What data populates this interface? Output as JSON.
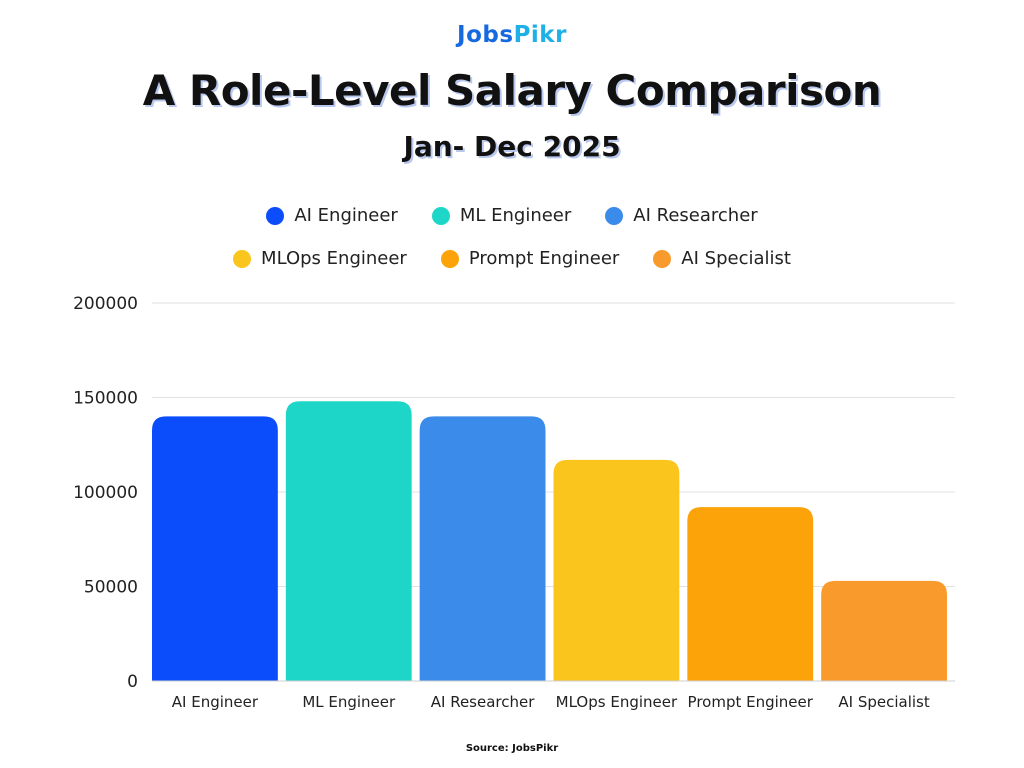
{
  "brand": {
    "logo_part1": "Jobs",
    "logo_part2": "Pikr",
    "logo_color1": "#1769e0",
    "logo_color2": "#1fb0e8"
  },
  "source": "Source: JobsPikr",
  "chart_data": {
    "type": "bar",
    "title": "A Role-Level Salary Comparison",
    "subtitle": "Jan- Dec 2025",
    "categories": [
      "AI Engineer",
      "ML Engineer",
      "AI Researcher",
      "MLOps Engineer",
      "Prompt Engineer",
      "AI Specialist"
    ],
    "values": [
      140000,
      148000,
      140000,
      117000,
      92000,
      53000
    ],
    "colors": [
      "#0b4dfa",
      "#1ed6c8",
      "#3b8beb",
      "#fac61e",
      "#fca30a",
      "#f99a2c"
    ],
    "ylim": [
      0,
      200000
    ],
    "yticks": [
      "0",
      "50000",
      "100000",
      "150000",
      "200000"
    ],
    "grid": true,
    "legend": {
      "position": "top-center",
      "entries": [
        "AI Engineer",
        "ML Engineer",
        "AI Researcher",
        "MLOps Engineer",
        "Prompt Engineer",
        "AI Specialist"
      ]
    }
  }
}
